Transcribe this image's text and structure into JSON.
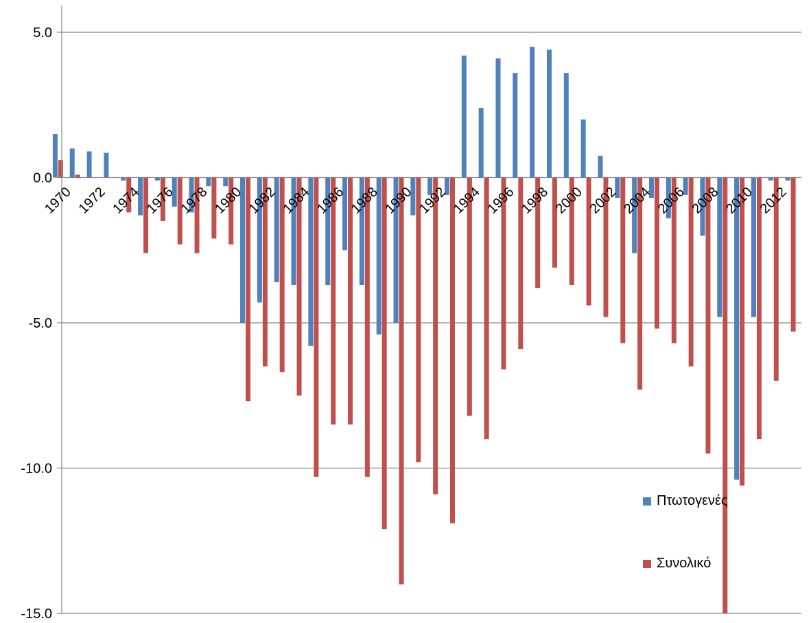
{
  "chart_data": {
    "type": "bar",
    "title": "",
    "xlabel": "",
    "ylabel": "",
    "ylim": [
      -15,
      5
    ],
    "yticks": [
      5,
      0,
      -5,
      -10,
      -15
    ],
    "ytick_labels": [
      "5.0",
      "0.0",
      "-5.0",
      "-10.0",
      "-15.0"
    ],
    "grid": true,
    "legend_position": "right",
    "categories": [
      "1970",
      "1971",
      "1972",
      "1973",
      "1974",
      "1975",
      "1976",
      "1977",
      "1978",
      "1979",
      "1980",
      "1981",
      "1982",
      "1983",
      "1984",
      "1985",
      "1986",
      "1987",
      "1988",
      "1989",
      "1990",
      "1991",
      "1992",
      "1993",
      "1994",
      "1995",
      "1996",
      "1997",
      "1998",
      "1999",
      "2000",
      "2001",
      "2002",
      "2003",
      "2004",
      "2005",
      "2006",
      "2007",
      "2008",
      "2009",
      "2010",
      "2011",
      "2012",
      "2013"
    ],
    "xtick_labels": [
      "1970",
      "",
      "1972",
      "",
      "1974",
      "",
      "1976",
      "",
      "1978",
      "",
      "1980",
      "",
      "1982",
      "",
      "1984",
      "",
      "1986",
      "",
      "1988",
      "",
      "1990",
      "",
      "1992",
      "",
      "1994",
      "",
      "1996",
      "",
      "1998",
      "",
      "2000",
      "",
      "2002",
      "",
      "2004",
      "",
      "2006",
      "",
      "2008",
      "",
      "2010",
      "",
      "2012",
      ""
    ],
    "series": [
      {
        "name": "Πτωτογενές",
        "color": "#4F81BD",
        "values": [
          1.5,
          1.0,
          0.9,
          0.85,
          -0.1,
          -1.3,
          -0.1,
          -1.0,
          -1.2,
          -0.3,
          -0.3,
          -5.0,
          -4.3,
          -3.6,
          -3.7,
          -5.8,
          -3.7,
          -2.5,
          -3.7,
          -5.4,
          -5.0,
          -1.3,
          -0.6,
          -0.6,
          4.2,
          2.4,
          4.1,
          3.6,
          4.5,
          4.4,
          3.6,
          2.0,
          0.75,
          -0.7,
          -2.6,
          -0.7,
          -1.4,
          -0.6,
          -2.0,
          -4.8,
          -10.4,
          -4.8,
          -0.1,
          -0.1
        ]
      },
      {
        "name": "Συνολικό",
        "color": "#C0504D",
        "values": [
          0.6,
          0.1,
          0.0,
          0.0,
          -1.2,
          -2.6,
          -1.5,
          -2.3,
          -2.6,
          -2.1,
          -2.3,
          -7.7,
          -6.5,
          -6.7,
          -7.5,
          -10.3,
          -8.5,
          -8.5,
          -10.3,
          -12.1,
          -14.0,
          -9.8,
          -10.9,
          -11.9,
          -8.2,
          -9.0,
          -6.6,
          -5.9,
          -3.8,
          -3.1,
          -3.7,
          -4.4,
          -4.8,
          -5.7,
          -7.3,
          -5.2,
          -5.7,
          -6.5,
          -9.5,
          -15.0,
          -10.6,
          -9.0,
          -7.0,
          -5.3
        ]
      }
    ]
  }
}
